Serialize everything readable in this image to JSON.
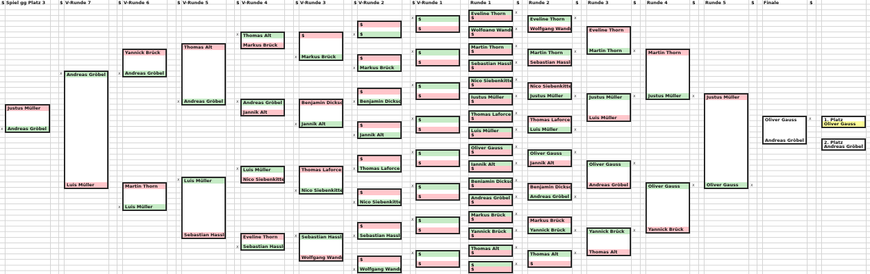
{
  "colors": {
    "win": "#c6ebc6",
    "loss": "#ffc6cb",
    "neutral": "#ffffff",
    "first": "#ffff99",
    "second": "#efefef",
    "border": "#262626",
    "grid": "#d4d4d4"
  },
  "marker": "x",
  "columns": [
    {
      "key": "p3",
      "title": "Spiel gg Platz 3",
      "dollar": "$",
      "boxes": [
        {
          "top": {
            "name": "Justus Müller",
            "state": "loss"
          },
          "bottom": {
            "name": "Andreas Gröbel",
            "state": "win"
          },
          "mark": "bottom"
        }
      ]
    },
    {
      "key": "v7",
      "title": "V-Runde 7",
      "dollar": "$",
      "boxes": [
        {
          "top": {
            "name": "Andreas Gröbel",
            "state": "win"
          },
          "bottom": {
            "name": "Luis Müller",
            "state": "loss"
          },
          "mark": "top"
        }
      ]
    },
    {
      "key": "v6",
      "title": "V-Runde 6",
      "dollar": "$",
      "boxes": [
        {
          "top": {
            "name": "Yannick Brück",
            "state": "loss"
          },
          "bottom": {
            "name": "Andreas Gröbel",
            "state": "win"
          },
          "mark": "bottom"
        },
        {
          "top": {
            "name": "Martin Thorn",
            "state": "loss"
          },
          "bottom": {
            "name": "Luis Müller",
            "state": "win"
          },
          "mark": "bottom"
        }
      ]
    },
    {
      "key": "v5",
      "title": "V-Runde 5",
      "dollar": "$",
      "boxes": [
        {
          "top": {
            "name": "Thomas Alt",
            "state": "loss"
          },
          "bottom": {
            "name": "Andreas Gröbel",
            "state": "win"
          },
          "mark": "bottom"
        },
        {
          "top": {
            "name": "Luis Müller",
            "state": "win"
          },
          "bottom": {
            "name": "Sebastian Hassler",
            "state": "loss"
          },
          "mark": "top"
        }
      ]
    },
    {
      "key": "v4",
      "title": "V-Runde 4",
      "dollar": "$",
      "boxes": [
        {
          "top": {
            "name": "Thomas Alt",
            "state": "win"
          },
          "bottom": {
            "name": "Markus Brück",
            "state": "loss"
          },
          "mark": "top"
        },
        {
          "top": {
            "name": "Andreas Gröbel",
            "state": "win"
          },
          "bottom": {
            "name": "Jannik Alt",
            "state": "loss"
          },
          "mark": "top"
        },
        {
          "top": {
            "name": "Luis Müller",
            "state": "win"
          },
          "bottom": {
            "name": "Nico Siebenkittel",
            "state": "loss"
          },
          "mark": "top"
        },
        {
          "top": {
            "name": "Eveline Thorn",
            "state": "loss"
          },
          "bottom": {
            "name": "Sebastian Hassler",
            "state": "win"
          },
          "mark": "bottom"
        }
      ]
    },
    {
      "key": "v3",
      "title": "V-Runde 3",
      "dollar": "$",
      "boxes": [
        {
          "top": {
            "name": "$",
            "state": "loss"
          },
          "bottom": {
            "name": "Markus Brück",
            "state": "win"
          },
          "mark": "bottom"
        },
        {
          "top": {
            "name": "Benjamin Dickson",
            "state": "loss"
          },
          "bottom": {
            "name": "Jannik Alt",
            "state": "win"
          },
          "mark": "bottom"
        },
        {
          "top": {
            "name": "Thomas Laforce",
            "state": "loss"
          },
          "bottom": {
            "name": "Nico Siebenkittel",
            "state": "win"
          },
          "mark": "bottom"
        },
        {
          "top": {
            "name": "Sebastian Hassler",
            "state": "win"
          },
          "bottom": {
            "name": "Wolfgang Wandner",
            "state": "loss"
          },
          "mark": "top"
        }
      ]
    },
    {
      "key": "v2",
      "title": "V-Runde 2",
      "dollar": "$",
      "boxes": [
        {
          "top": {
            "name": "$",
            "state": "loss"
          },
          "bottom": {
            "name": "$",
            "state": "win"
          },
          "mark": "bottom"
        },
        {
          "top": {
            "name": "$",
            "state": "loss"
          },
          "bottom": {
            "name": "Markus Brück",
            "state": "win"
          },
          "mark": "bottom"
        },
        {
          "top": {
            "name": "$",
            "state": "loss"
          },
          "bottom": {
            "name": "Benjamin Dickson",
            "state": "win"
          },
          "mark": "bottom"
        },
        {
          "top": {
            "name": "$",
            "state": "loss"
          },
          "bottom": {
            "name": "Jannik Alt",
            "state": "win"
          },
          "mark": "bottom"
        },
        {
          "top": {
            "name": "$",
            "state": "loss"
          },
          "bottom": {
            "name": "Thomas Laforce",
            "state": "win"
          },
          "mark": "bottom"
        },
        {
          "top": {
            "name": "$",
            "state": "loss"
          },
          "bottom": {
            "name": "Nico Siebenkittel",
            "state": "win"
          },
          "mark": "bottom"
        },
        {
          "top": {
            "name": "$",
            "state": "loss"
          },
          "bottom": {
            "name": "Sebastian Hassler",
            "state": "win"
          },
          "mark": "bottom"
        },
        {
          "top": {
            "name": "$",
            "state": "loss"
          },
          "bottom": {
            "name": "Wolfgang Wandner",
            "state": "win"
          },
          "mark": "bottom"
        }
      ]
    },
    {
      "key": "v1",
      "title": "V-Runde 1",
      "dollar": "$",
      "boxes": [
        {
          "top": {
            "name": "$",
            "state": "win"
          },
          "bottom": {
            "name": "$",
            "state": "loss"
          },
          "mark": "top"
        },
        {
          "top": {
            "name": "$",
            "state": "win"
          },
          "bottom": {
            "name": "$",
            "state": "loss"
          },
          "mark": "top"
        },
        {
          "top": {
            "name": "$",
            "state": "win"
          },
          "bottom": {
            "name": "$",
            "state": "loss"
          },
          "mark": "top"
        },
        {
          "top": {
            "name": "$",
            "state": "win"
          },
          "bottom": {
            "name": "$",
            "state": "loss"
          },
          "mark": "top"
        },
        {
          "top": {
            "name": "$",
            "state": "win"
          },
          "bottom": {
            "name": "$",
            "state": "loss"
          },
          "mark": "top"
        },
        {
          "top": {
            "name": "$",
            "state": "win"
          },
          "bottom": {
            "name": "$",
            "state": "loss"
          },
          "mark": "top"
        },
        {
          "top": {
            "name": "$",
            "state": "win"
          },
          "bottom": {
            "name": "$",
            "state": "loss"
          },
          "mark": "top"
        },
        {
          "top": {
            "name": "$",
            "state": "win"
          },
          "bottom": {
            "name": "$",
            "state": "loss"
          },
          "mark": "top"
        }
      ]
    },
    {
      "key": "r1",
      "title": "Runde 1",
      "dollar": "$",
      "boxes": [
        {
          "top": {
            "name": "Eveline Thorn",
            "state": "win"
          },
          "bottom": {
            "name": "$",
            "state": "loss"
          },
          "mark": "top"
        },
        {
          "top": {
            "name": "Wolfgang Wandner",
            "state": "win"
          },
          "bottom": {
            "name": "$",
            "state": "loss"
          },
          "mark": "top"
        },
        {
          "top": {
            "name": "Martin Thorn",
            "state": "win"
          },
          "bottom": {
            "name": "$",
            "state": "loss"
          },
          "mark": "top"
        },
        {
          "top": {
            "name": "Sebastian Hassler",
            "state": "win"
          },
          "bottom": {
            "name": "$",
            "state": "loss"
          },
          "mark": "top"
        },
        {
          "top": {
            "name": "Nico Siebenkittel",
            "state": "win"
          },
          "bottom": {
            "name": "$",
            "state": "loss"
          },
          "mark": "top"
        },
        {
          "top": {
            "name": "Justus Müller",
            "state": "win"
          },
          "bottom": {
            "name": "$",
            "state": "loss"
          },
          "mark": "top"
        },
        {
          "top": {
            "name": "Thomas Laforce",
            "state": "win"
          },
          "bottom": {
            "name": "$",
            "state": "loss"
          },
          "mark": "top"
        },
        {
          "top": {
            "name": "Luis Müller",
            "state": "win"
          },
          "bottom": {
            "name": "$",
            "state": "loss"
          },
          "mark": "top"
        },
        {
          "top": {
            "name": "Oliver Gauss",
            "state": "win"
          },
          "bottom": {
            "name": "$",
            "state": "loss"
          },
          "mark": "top"
        },
        {
          "top": {
            "name": "Jannik Alt",
            "state": "win"
          },
          "bottom": {
            "name": "$",
            "state": "loss"
          },
          "mark": "top"
        },
        {
          "top": {
            "name": "Benjamin Dickson",
            "state": "win"
          },
          "bottom": {
            "name": "$",
            "state": "loss"
          },
          "mark": "top"
        },
        {
          "top": {
            "name": "Andreas Gröbel",
            "state": "win"
          },
          "bottom": {
            "name": "$",
            "state": "loss"
          },
          "mark": "top"
        },
        {
          "top": {
            "name": "Markus Brück",
            "state": "win"
          },
          "bottom": {
            "name": "$",
            "state": "loss"
          },
          "mark": "top"
        },
        {
          "top": {
            "name": "Yannick Brück",
            "state": "win"
          },
          "bottom": {
            "name": "$",
            "state": "loss"
          },
          "mark": "top"
        },
        {
          "top": {
            "name": "Thomas Alt",
            "state": "win"
          },
          "bottom": {
            "name": "$",
            "state": "loss"
          },
          "mark": "top"
        },
        {
          "top": {
            "name": "$",
            "state": "win"
          },
          "bottom": {
            "name": "$",
            "state": "loss"
          },
          "mark": "top"
        }
      ]
    },
    {
      "key": "r2",
      "title": "Runde 2",
      "dollar": "$",
      "boxes": [
        {
          "top": {
            "name": "Eveline Thorn",
            "state": "win"
          },
          "bottom": {
            "name": "Wolfgang Wandner",
            "state": "loss"
          },
          "mark": "top"
        },
        {
          "top": {
            "name": "Martin Thorn",
            "state": "win"
          },
          "bottom": {
            "name": "Sebastian Hassler",
            "state": "loss"
          },
          "mark": "top"
        },
        {
          "top": {
            "name": "Nico Siebenkittel",
            "state": "loss"
          },
          "bottom": {
            "name": "Justus Müller",
            "state": "win"
          },
          "mark": "bottom"
        },
        {
          "top": {
            "name": "Thomas Laforce",
            "state": "loss"
          },
          "bottom": {
            "name": "Luis Müller",
            "state": "win"
          },
          "mark": "bottom"
        },
        {
          "top": {
            "name": "Oliver Gauss",
            "state": "win"
          },
          "bottom": {
            "name": "Jannik Alt",
            "state": "loss"
          },
          "mark": "top"
        },
        {
          "top": {
            "name": "Benjamin Dickson",
            "state": "loss"
          },
          "bottom": {
            "name": "Andreas Gröbel",
            "state": "win"
          },
          "mark": "bottom"
        },
        {
          "top": {
            "name": "Markus Brück",
            "state": "loss"
          },
          "bottom": {
            "name": "Yannick Brück",
            "state": "win"
          },
          "mark": "bottom"
        },
        {
          "top": {
            "name": "Thomas Alt",
            "state": "win"
          },
          "bottom": {
            "name": "$",
            "state": "loss"
          },
          "mark": "top"
        }
      ]
    },
    {
      "key": "r3",
      "title": "Runde 3",
      "dollar": "$",
      "boxes": [
        {
          "top": {
            "name": "Eveline Thorn",
            "state": "loss"
          },
          "bottom": {
            "name": "Martin Thorn",
            "state": "win"
          },
          "mark": "bottom"
        },
        {
          "top": {
            "name": "Justus Müller",
            "state": "win"
          },
          "bottom": {
            "name": "Luis Müller",
            "state": "loss"
          },
          "mark": "top"
        },
        {
          "top": {
            "name": "Oliver Gauss",
            "state": "win"
          },
          "bottom": {
            "name": "Andreas Gröbel",
            "state": "loss"
          },
          "mark": "top"
        },
        {
          "top": {
            "name": "Yannick Brück",
            "state": "win"
          },
          "bottom": {
            "name": "Thomas Alt",
            "state": "loss"
          },
          "mark": "top"
        }
      ]
    },
    {
      "key": "r4",
      "title": "Runde 4",
      "dollar": "$",
      "boxes": [
        {
          "top": {
            "name": "Martin Thorn",
            "state": "loss"
          },
          "bottom": {
            "name": "Justus Müller",
            "state": "win"
          },
          "mark": "bottom"
        },
        {
          "top": {
            "name": "Oliver Gauss",
            "state": "win"
          },
          "bottom": {
            "name": "Yannick Brück",
            "state": "loss"
          },
          "mark": "top"
        }
      ]
    },
    {
      "key": "r5",
      "title": "Runde 5",
      "dollar": "$",
      "boxes": [
        {
          "top": {
            "name": "Justus Müller",
            "state": "loss"
          },
          "bottom": {
            "name": "Oliver Gauss",
            "state": "win"
          },
          "mark": "bottom"
        }
      ]
    },
    {
      "key": "fin",
      "title": "Finale",
      "dollar": "$",
      "boxes": [
        {
          "top": {
            "name": "Oliver Gauss",
            "state": "neutral"
          },
          "bottom": {
            "name": "Andreas Gröbel",
            "state": "neutral"
          },
          "mark": "top"
        }
      ]
    },
    {
      "key": "place",
      "title": "",
      "dollar": "",
      "boxes": [
        {
          "top": {
            "name": "1. Platz",
            "state": "neutral"
          },
          "bottom": {
            "name": "Oliver Gauss",
            "state": "first"
          },
          "mark": ""
        },
        {
          "top": {
            "name": "2. Platz",
            "state": "neutral"
          },
          "bottom": {
            "name": "Andreas Gröbel",
            "state": "second"
          },
          "mark": ""
        }
      ]
    }
  ]
}
